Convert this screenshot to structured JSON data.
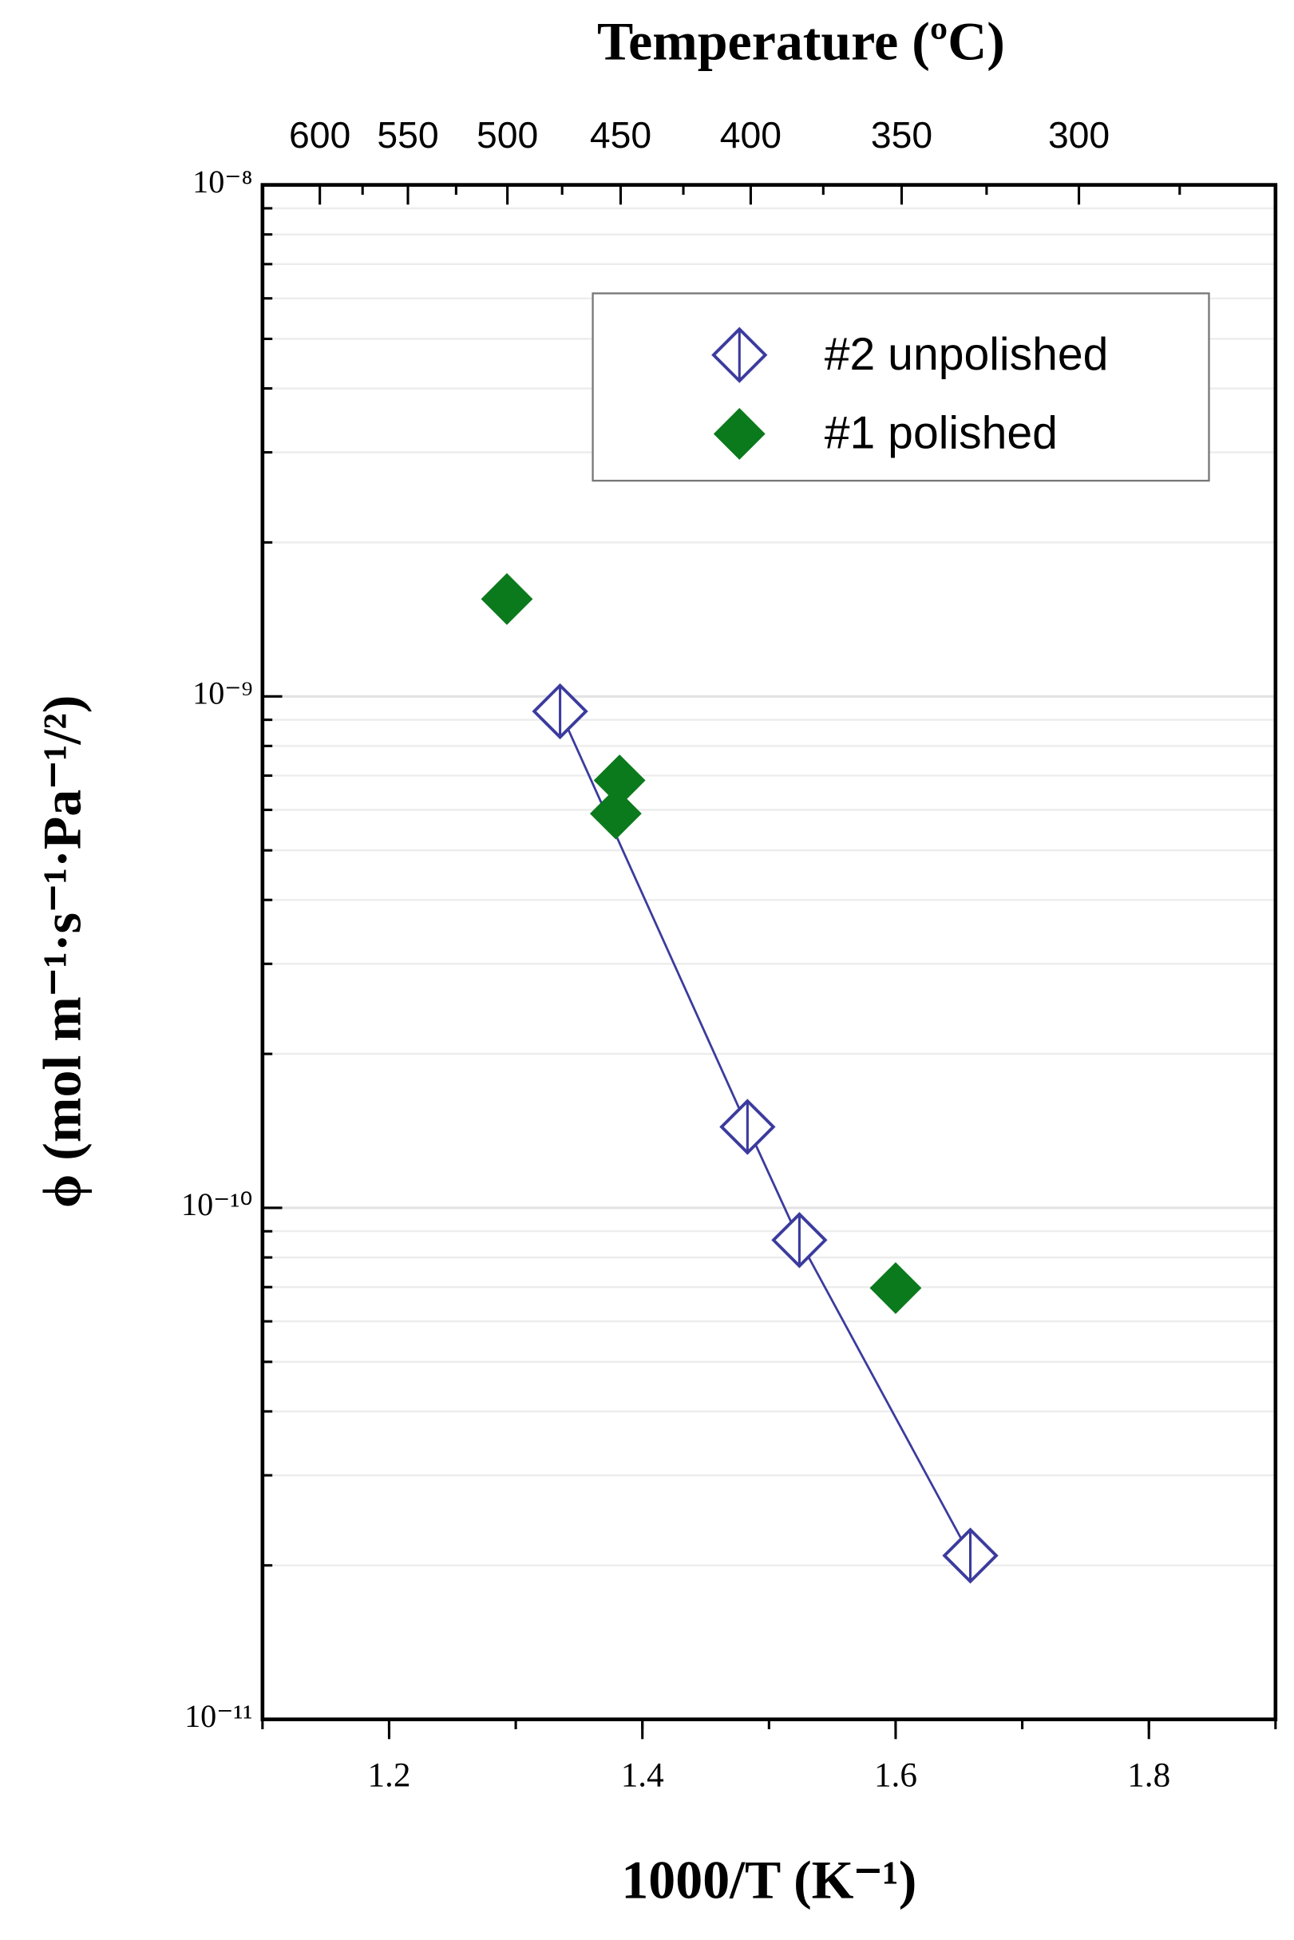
{
  "chart_data": {
    "type": "scatter",
    "title": "Temperature (ºC)",
    "xlabel": "1000/T (K⁻¹)",
    "ylabel": "ϕ (mol m⁻¹·s⁻¹·Pa⁻¹/²)",
    "xlim": [
      1.1,
      1.9
    ],
    "xticks": [
      1.2,
      1.4,
      1.6,
      1.8
    ],
    "top_xticks": [
      600,
      550,
      500,
      450,
      400,
      350,
      300
    ],
    "ylim": [
      1e-11,
      1e-08
    ],
    "log_y": true,
    "yticks": [
      {
        "value": 1e-11,
        "label": "10⁻¹¹"
      },
      {
        "value": 1e-10,
        "label": "10⁻¹⁰"
      },
      {
        "value": 1e-09,
        "label": "10⁻⁹"
      },
      {
        "value": 1e-08,
        "label": "10⁻⁸"
      }
    ],
    "grid": true,
    "legend": "upper right",
    "series": [
      {
        "name": "#2 unpolished",
        "color": "#3b3b9e",
        "marker": "open-diamond",
        "line": true,
        "x": [
          1.335,
          1.483,
          1.524,
          1.659
        ],
        "values": [
          9.35e-10,
          1.44e-10,
          8.65e-11,
          2.09e-11
        ]
      },
      {
        "name": "#1 polished",
        "color": "#0b7a1c",
        "marker": "filled-diamond",
        "line": false,
        "x": [
          1.293,
          1.382,
          1.379,
          1.6
        ],
        "values": [
          1.55e-09,
          6.85e-10,
          5.9e-10,
          6.97e-11
        ]
      }
    ]
  }
}
